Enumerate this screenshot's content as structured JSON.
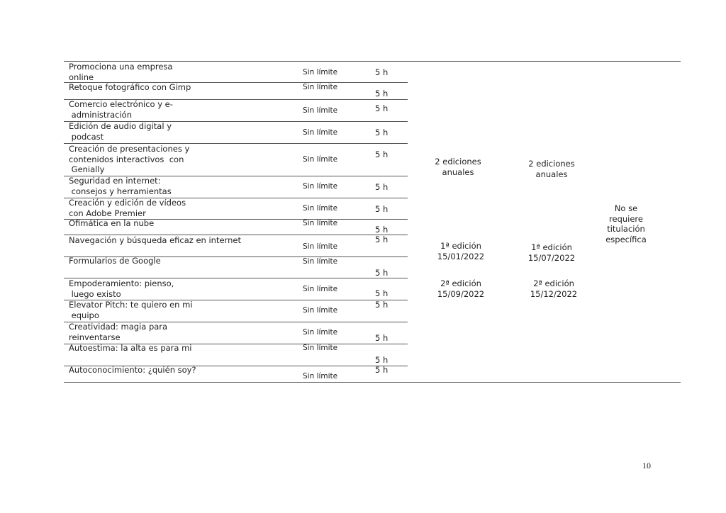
{
  "table": {
    "rows": [
      {
        "name": "Promociona una empresa\nonline",
        "duration": "Sin límite",
        "hours": "5 h"
      },
      {
        "name": "Retoque fotográfico con Gimp",
        "duration": "Sin límite",
        "hours": "5 h"
      },
      {
        "name": "Comercio electrónico y e-\n administración",
        "duration": "Sin límite",
        "hours": "5 h"
      },
      {
        "name": "Edición de audio digital y\n podcast",
        "duration": "Sin límite",
        "hours": "5 h"
      },
      {
        "name": "Creación de presentaciones y\ncontenidos interactivos  con\n Genially",
        "duration": "Sin límite",
        "hours": "5 h"
      },
      {
        "name": "Seguridad en internet:\n consejos y herramientas",
        "duration": "Sin límite",
        "hours": "5 h"
      },
      {
        "name": "Creación y edición de vídeos\ncon Adobe Premier",
        "duration": "Sin límite",
        "hours": "5 h"
      },
      {
        "name": "Ofimática en la nube",
        "duration": "Sin límite",
        "hours": "5 h"
      },
      {
        "name": "Navegación y búsqueda eficaz en internet",
        "duration": "Sin límite",
        "hours": "5 h"
      },
      {
        "name": "Formularios de Google",
        "duration": "Sin límite",
        "hours": "5 h"
      },
      {
        "name": "Empoderamiento: pienso,\n luego existo",
        "duration": "Sin límite",
        "hours": "5 h"
      },
      {
        "name": "Elevator Pitch: te quiero en mi\n equipo",
        "duration": "Sin límite",
        "hours": "5 h"
      },
      {
        "name": "Creatividad: magia para\nreinventarse",
        "duration": "Sin límite",
        "hours": "5 h"
      },
      {
        "name": "Autoestima: la alta es para mi",
        "duration": "Sin límite",
        "hours": "5 h"
      },
      {
        "name": "Autoconocimiento: ¿quién soy?",
        "duration": "Sin límite",
        "hours": "5 h"
      }
    ],
    "col4": {
      "frequency": "2 ediciones\nanuales",
      "edition1": "1ª edición\n15/01/2022",
      "edition2": "2ª edición\n15/09/2022"
    },
    "col5": {
      "frequency": "2 ediciones\nanuales",
      "edition1": "1ª edición\n15/07/2022",
      "edition2": "2ª edición\n15/12/2022"
    },
    "requirement": "No se\nrequiere\ntitulación\nespecífica"
  },
  "page_number": "10"
}
